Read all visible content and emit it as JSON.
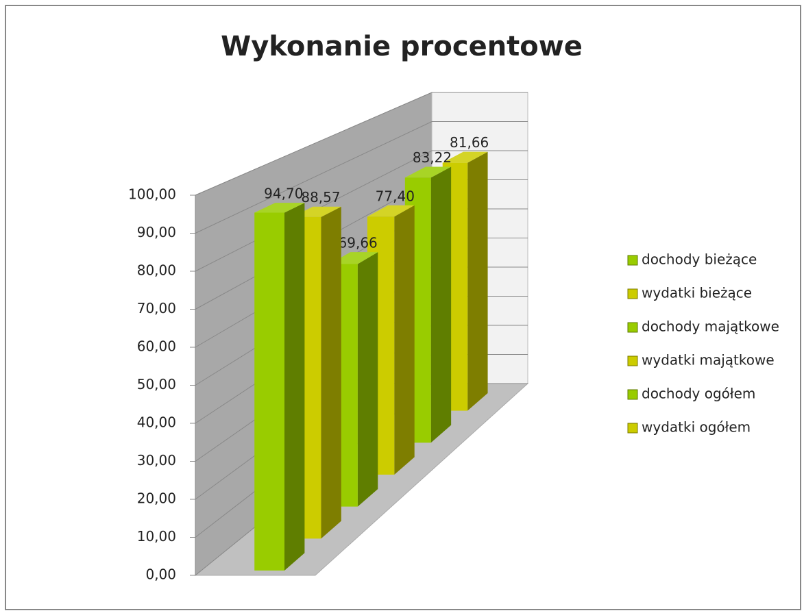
{
  "chart_data": {
    "type": "bar3d",
    "title": "Wykonanie procentowe",
    "series": [
      {
        "name": "dochody bieżące",
        "color": "#99cc00",
        "values": [
          94.7
        ],
        "value_labels": [
          "94,70"
        ]
      },
      {
        "name": "wydatki bieżące",
        "color": "#cccc00",
        "values": [
          88.57
        ],
        "value_labels": [
          "88,57"
        ]
      },
      {
        "name": "dochody majątkowe",
        "color": "#99cc00",
        "values": [
          69.66
        ],
        "value_labels": [
          "69,66"
        ]
      },
      {
        "name": "wydatki majątkowe",
        "color": "#cccc00",
        "values": [
          77.4
        ],
        "value_labels": [
          "77,40"
        ]
      },
      {
        "name": "dochody ogółem",
        "color": "#99cc00",
        "values": [
          83.22
        ],
        "value_labels": [
          "83,22"
        ]
      },
      {
        "name": "wydatki ogółem",
        "color": "#cccc00",
        "values": [
          81.66
        ],
        "value_labels": [
          "81,66"
        ]
      }
    ],
    "ylim": [
      0,
      100
    ],
    "yticks": [
      {
        "value": 0,
        "label": "0,00"
      },
      {
        "value": 10,
        "label": "10,00"
      },
      {
        "value": 20,
        "label": "20,00"
      },
      {
        "value": 30,
        "label": "30,00"
      },
      {
        "value": 40,
        "label": "40,00"
      },
      {
        "value": 50,
        "label": "50,00"
      },
      {
        "value": 60,
        "label": "60,00"
      },
      {
        "value": 70,
        "label": "70,00"
      },
      {
        "value": 80,
        "label": "80,00"
      },
      {
        "value": 90,
        "label": "90,00"
      },
      {
        "value": 100,
        "label": "100,00"
      }
    ],
    "grid": true,
    "legend": "right"
  }
}
